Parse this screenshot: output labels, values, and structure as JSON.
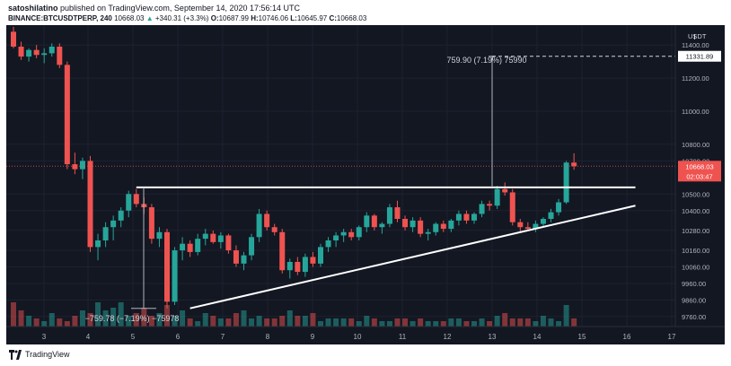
{
  "header": {
    "author": "satoshilatino",
    "published_text": " published on TradingView.com, September 14, 2020 17:56:14 UTC",
    "symbol": "BINANCE:BTCUSDTPERP, 240",
    "price": "10668.03",
    "change": "+340.31 (+3.3%)",
    "open_label": "O:",
    "open": "10687.99",
    "high_label": "H:",
    "high": "10746.06",
    "low_label": "L:",
    "low": "10645.97",
    "close_label": "C:",
    "close": "10668.03"
  },
  "footer": {
    "brand": "TradingView"
  },
  "colors": {
    "up": "#26a69a",
    "down": "#ef5350",
    "bg": "#131722",
    "grid": "#1e2230"
  },
  "chart_data": {
    "type": "candlestick",
    "price_axis": {
      "currency_label": "USDT",
      "ticks": [
        "11400.00",
        "11200.00",
        "11000.00",
        "10800.00",
        "10700.00",
        "10500.00",
        "10400.00",
        "10280.00",
        "10160.00",
        "10060.00",
        "9960.00",
        "9860.00",
        "9760.00"
      ],
      "current_price_tag": "10668.03",
      "countdown_tag": "02:03:47",
      "target_tag": "11331.89"
    },
    "time_axis": {
      "ticks": [
        "3",
        "4",
        "5",
        "6",
        "7",
        "8",
        "9",
        "10",
        "11",
        "12",
        "13",
        "14",
        "15",
        "16",
        "17"
      ]
    },
    "annotations": {
      "top_measure": "759.90 (7.19%) 75990",
      "bottom_measure": "−759.78 (−7.19%) −75978"
    },
    "candles": [
      {
        "o": 11480,
        "h": 11510,
        "l": 11380,
        "c": 11390
      },
      {
        "o": 11390,
        "h": 11420,
        "l": 11310,
        "c": 11330
      },
      {
        "o": 11330,
        "h": 11380,
        "l": 11300,
        "c": 11370
      },
      {
        "o": 11370,
        "h": 11400,
        "l": 11320,
        "c": 11340
      },
      {
        "o": 11340,
        "h": 11380,
        "l": 11290,
        "c": 11350
      },
      {
        "o": 11350,
        "h": 11410,
        "l": 11330,
        "c": 11390
      },
      {
        "o": 11390,
        "h": 11410,
        "l": 11260,
        "c": 11280
      },
      {
        "o": 11280,
        "h": 11300,
        "l": 10650,
        "c": 10680
      },
      {
        "o": 10680,
        "h": 10750,
        "l": 10620,
        "c": 10650
      },
      {
        "o": 10650,
        "h": 10720,
        "l": 10590,
        "c": 10700
      },
      {
        "o": 10700,
        "h": 10730,
        "l": 10150,
        "c": 10180
      },
      {
        "o": 10180,
        "h": 10260,
        "l": 10100,
        "c": 10220
      },
      {
        "o": 10220,
        "h": 10330,
        "l": 10180,
        "c": 10300
      },
      {
        "o": 10300,
        "h": 10370,
        "l": 10220,
        "c": 10340
      },
      {
        "o": 10340,
        "h": 10420,
        "l": 10300,
        "c": 10400
      },
      {
        "o": 10400,
        "h": 10520,
        "l": 10360,
        "c": 10500
      },
      {
        "o": 10500,
        "h": 10530,
        "l": 10420,
        "c": 10440
      },
      {
        "o": 10440,
        "h": 10480,
        "l": 10380,
        "c": 10420
      },
      {
        "o": 10420,
        "h": 10440,
        "l": 10200,
        "c": 10230
      },
      {
        "o": 10230,
        "h": 10300,
        "l": 10180,
        "c": 10270
      },
      {
        "o": 10270,
        "h": 10290,
        "l": 9810,
        "c": 9850
      },
      {
        "o": 9850,
        "h": 10180,
        "l": 9830,
        "c": 10160
      },
      {
        "o": 10160,
        "h": 10240,
        "l": 10100,
        "c": 10200
      },
      {
        "o": 10200,
        "h": 10220,
        "l": 10120,
        "c": 10150
      },
      {
        "o": 10150,
        "h": 10260,
        "l": 10130,
        "c": 10230
      },
      {
        "o": 10230,
        "h": 10290,
        "l": 10190,
        "c": 10260
      },
      {
        "o": 10260,
        "h": 10280,
        "l": 10200,
        "c": 10210
      },
      {
        "o": 10210,
        "h": 10270,
        "l": 10170,
        "c": 10250
      },
      {
        "o": 10250,
        "h": 10260,
        "l": 10140,
        "c": 10160
      },
      {
        "o": 10160,
        "h": 10190,
        "l": 10060,
        "c": 10080
      },
      {
        "o": 10080,
        "h": 10150,
        "l": 10040,
        "c": 10130
      },
      {
        "o": 10130,
        "h": 10260,
        "l": 10100,
        "c": 10240
      },
      {
        "o": 10240,
        "h": 10410,
        "l": 10210,
        "c": 10380
      },
      {
        "o": 10380,
        "h": 10400,
        "l": 10280,
        "c": 10300
      },
      {
        "o": 10300,
        "h": 10320,
        "l": 10250,
        "c": 10270
      },
      {
        "o": 10270,
        "h": 10290,
        "l": 10020,
        "c": 10040
      },
      {
        "o": 10040,
        "h": 10110,
        "l": 9990,
        "c": 10090
      },
      {
        "o": 10090,
        "h": 10120,
        "l": 10010,
        "c": 10030
      },
      {
        "o": 10030,
        "h": 10140,
        "l": 10000,
        "c": 10120
      },
      {
        "o": 10120,
        "h": 10150,
        "l": 10060,
        "c": 10080
      },
      {
        "o": 10080,
        "h": 10200,
        "l": 10060,
        "c": 10180
      },
      {
        "o": 10180,
        "h": 10240,
        "l": 10150,
        "c": 10220
      },
      {
        "o": 10220,
        "h": 10270,
        "l": 10180,
        "c": 10250
      },
      {
        "o": 10250,
        "h": 10290,
        "l": 10210,
        "c": 10270
      },
      {
        "o": 10270,
        "h": 10290,
        "l": 10220,
        "c": 10240
      },
      {
        "o": 10240,
        "h": 10310,
        "l": 10220,
        "c": 10300
      },
      {
        "o": 10300,
        "h": 10390,
        "l": 10270,
        "c": 10370
      },
      {
        "o": 10370,
        "h": 10380,
        "l": 10280,
        "c": 10300
      },
      {
        "o": 10300,
        "h": 10330,
        "l": 10260,
        "c": 10320
      },
      {
        "o": 10320,
        "h": 10440,
        "l": 10300,
        "c": 10420
      },
      {
        "o": 10420,
        "h": 10460,
        "l": 10330,
        "c": 10350
      },
      {
        "o": 10350,
        "h": 10370,
        "l": 10280,
        "c": 10300
      },
      {
        "o": 10300,
        "h": 10360,
        "l": 10270,
        "c": 10340
      },
      {
        "o": 10340,
        "h": 10360,
        "l": 10240,
        "c": 10260
      },
      {
        "o": 10260,
        "h": 10290,
        "l": 10220,
        "c": 10270
      },
      {
        "o": 10270,
        "h": 10330,
        "l": 10250,
        "c": 10320
      },
      {
        "o": 10320,
        "h": 10340,
        "l": 10270,
        "c": 10290
      },
      {
        "o": 10290,
        "h": 10350,
        "l": 10270,
        "c": 10340
      },
      {
        "o": 10340,
        "h": 10400,
        "l": 10310,
        "c": 10380
      },
      {
        "o": 10380,
        "h": 10400,
        "l": 10320,
        "c": 10340
      },
      {
        "o": 10340,
        "h": 10390,
        "l": 10320,
        "c": 10380
      },
      {
        "o": 10380,
        "h": 10460,
        "l": 10360,
        "c": 10440
      },
      {
        "o": 10440,
        "h": 10460,
        "l": 10400,
        "c": 10430
      },
      {
        "o": 10430,
        "h": 10550,
        "l": 10410,
        "c": 10530
      },
      {
        "o": 10530,
        "h": 10570,
        "l": 10490,
        "c": 10510
      },
      {
        "o": 10510,
        "h": 10530,
        "l": 10310,
        "c": 10330
      },
      {
        "o": 10330,
        "h": 10350,
        "l": 10270,
        "c": 10300
      },
      {
        "o": 10300,
        "h": 10330,
        "l": 10280,
        "c": 10290
      },
      {
        "o": 10290,
        "h": 10340,
        "l": 10270,
        "c": 10320
      },
      {
        "o": 10320,
        "h": 10360,
        "l": 10300,
        "c": 10350
      },
      {
        "o": 10350,
        "h": 10410,
        "l": 10330,
        "c": 10390
      },
      {
        "o": 10390,
        "h": 10470,
        "l": 10370,
        "c": 10450
      },
      {
        "o": 10450,
        "h": 10700,
        "l": 10440,
        "c": 10690
      },
      {
        "o": 10690,
        "h": 10746,
        "l": 10646,
        "c": 10668
      }
    ],
    "volumes": [
      9,
      6,
      4,
      3,
      2,
      5,
      3,
      2,
      4,
      6,
      5,
      9,
      6,
      7,
      9,
      4,
      5,
      7,
      4,
      5,
      8,
      4,
      6,
      3,
      2,
      5,
      4,
      3,
      3,
      5,
      6,
      3,
      4,
      3,
      3,
      4,
      6,
      4,
      4,
      5,
      2,
      3,
      3,
      3,
      3,
      2,
      4,
      3,
      2,
      2,
      3,
      3,
      2,
      3,
      2,
      2,
      2,
      3,
      3,
      2,
      2,
      3,
      2,
      4,
      5,
      3,
      3,
      3,
      2,
      4,
      3,
      2,
      8,
      3
    ],
    "lines": {
      "resistance": {
        "start_index": 16,
        "end_index": 81,
        "price": 10540
      },
      "ascending_trendline": {
        "start_index": 23,
        "start_price": 9810,
        "end_index": 81,
        "end_price": 10430
      },
      "target_level": {
        "price": 11331.89
      }
    }
  }
}
